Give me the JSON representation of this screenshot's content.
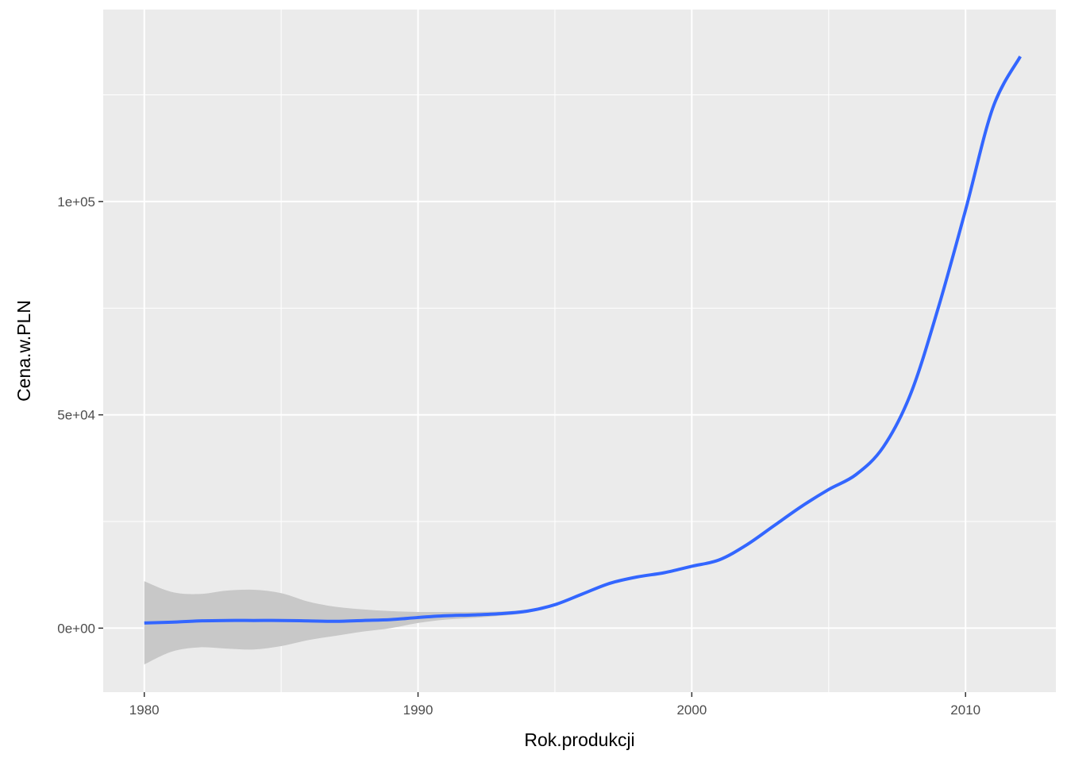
{
  "chart_data": {
    "type": "line",
    "subtype": "smooth_with_confidence_band",
    "title": "",
    "xlabel": "Rok.produkcji",
    "ylabel": "Cena.w.PLN",
    "xlim": [
      1978.5,
      2013.3
    ],
    "ylim": [
      -15000,
      145000
    ],
    "x_ticks": [
      1980,
      1990,
      2000,
      2010
    ],
    "x_tick_labels": [
      "1980",
      "1990",
      "2000",
      "2010"
    ],
    "y_ticks": [
      0,
      50000,
      100000
    ],
    "y_tick_labels": [
      "0e+00",
      "5e+04",
      "1e+05"
    ],
    "x_minor_gridlines": [
      1985,
      1995,
      2005
    ],
    "y_minor_gridlines": [
      25000,
      75000,
      125000
    ],
    "grid": true,
    "legend": "none",
    "colors": {
      "panel_background": "#ebebeb",
      "grid": "#ffffff",
      "line": "#3366ff",
      "band": "#c8c8c8"
    },
    "series": [
      {
        "x": [
          1980,
          1981,
          1982,
          1983,
          1984,
          1985,
          1986,
          1987,
          1988,
          1989,
          1990,
          1991,
          1992,
          1993,
          1994,
          1995,
          1996,
          1997,
          1998,
          1999,
          2000,
          2001,
          2002,
          2003,
          2004,
          2005,
          2006,
          2007,
          2008,
          2009,
          2010,
          2011,
          2012
        ],
        "y": [
          1200,
          1400,
          1700,
          1800,
          1800,
          1800,
          1700,
          1600,
          1800,
          2000,
          2500,
          2900,
          3100,
          3400,
          4000,
          5500,
          8000,
          10500,
          12000,
          13000,
          14500,
          16000,
          19500,
          24000,
          28500,
          32500,
          36000,
          42500,
          55000,
          75000,
          98000,
          122000,
          134000
        ],
        "lower": [
          -8500,
          -5500,
          -4500,
          -4800,
          -5000,
          -4200,
          -2800,
          -1800,
          -800,
          0,
          1200,
          2000,
          2400,
          2900,
          3600,
          5200,
          7800,
          10300,
          11800,
          12800,
          14300,
          15800,
          19300,
          23800,
          28300,
          32300,
          35800,
          42300,
          54800,
          74800,
          97800,
          121800,
          133800
        ],
        "upper": [
          11000,
          8500,
          8000,
          8800,
          9000,
          8200,
          6200,
          5000,
          4400,
          4000,
          3800,
          3800,
          3800,
          3900,
          4400,
          5800,
          8200,
          10700,
          12200,
          13200,
          14700,
          16200,
          19700,
          24200,
          28700,
          32700,
          36200,
          42700,
          55200,
          75200,
          98200,
          122200,
          134200
        ]
      }
    ]
  }
}
